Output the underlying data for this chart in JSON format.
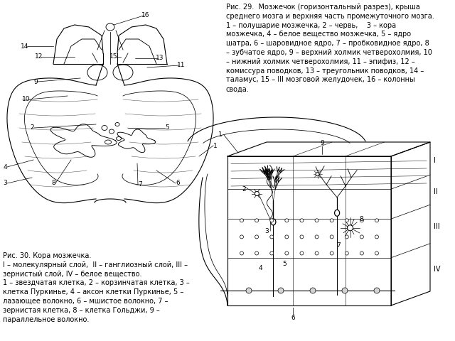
{
  "bg_color": "#ffffff",
  "fig_caption_29": "Рис. 29.  Мозжечок (горизонтальный разрез), крыша\nсреднего мозга и верхняя часть промежуточного мозга.\n1 – полушарие мозжечка, 2 – червь,    3 – кора\nмозжечка, 4 – белое вещество мозжечка, 5 – ядро\nшатра, 6 – шаровидное ядро, 7 – пробковидное ядро, 8\n– зубчатое ядро, 9 – верхний холмик четверохолмия, 10\n– нижний холмик четверохолмия, 11 – эпифиз, 12 –\nкомиссура поводков, 13 – треугольник поводков, 14 –\nталамус, 15 – III мозговой желудочек, 16 – колонны\nсвода.",
  "fig_caption_30": "Рис. 30. Кора мозжечка.\nI – молекулярный слой,  II – ганглиозный слой, III –\nзернистый слой, IV – белое вещество.\n1 – звездчатая клетка, 2 – корзинчатая клетка, 3 –\nклетка Пуркинье, 4 – аксон клетки Пуркинье, 5 –\nлазающее волокно, 6 – мшистое волокно, 7 –\nзернистая клетка, 8 – клетка Гольджи, 9 –\nпараллельное волокно.",
  "text_color": "#000000",
  "font_size_caption": 7.0,
  "font_size_labels": 6.5
}
